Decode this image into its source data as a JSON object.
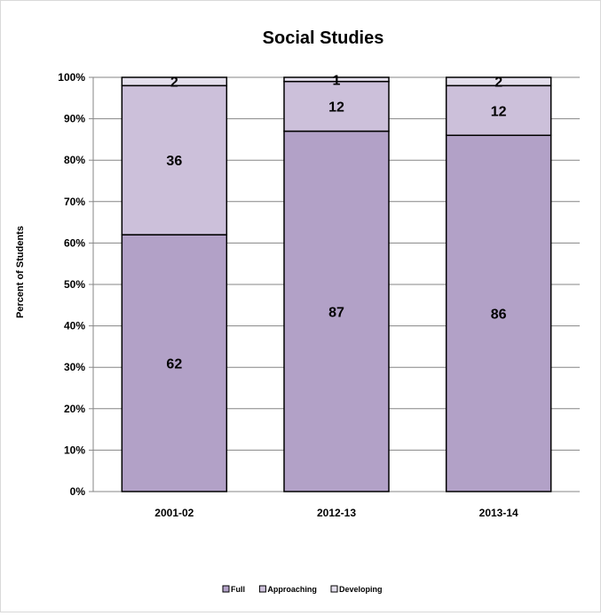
{
  "chart_data": {
    "type": "bar",
    "stacked": true,
    "title": "Social Studies",
    "xlabel": "",
    "ylabel": "Percent of Students",
    "ylim": [
      0,
      100
    ],
    "yticks": [
      "0%",
      "10%",
      "20%",
      "30%",
      "40%",
      "50%",
      "60%",
      "70%",
      "80%",
      "90%",
      "100%"
    ],
    "categories": [
      "2001-02",
      "2012-13",
      "2013-14"
    ],
    "series": [
      {
        "name": "Full",
        "values": [
          62,
          87,
          86
        ],
        "color": "#b2a1c7"
      },
      {
        "name": "Approaching",
        "values": [
          36,
          12,
          12
        ],
        "color": "#ccc0da"
      },
      {
        "name": "Developing",
        "values": [
          2,
          1,
          2
        ],
        "color": "#e4dfec"
      }
    ],
    "grid": true,
    "legend": "bottom"
  }
}
